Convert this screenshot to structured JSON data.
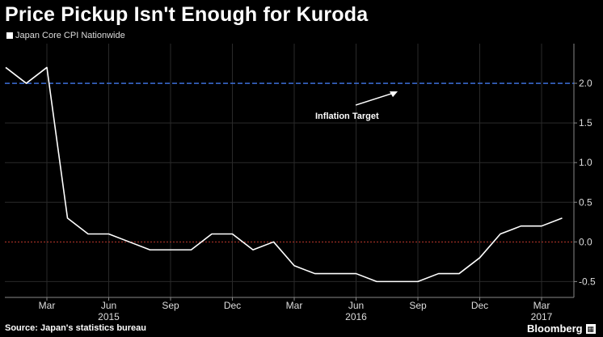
{
  "header": {
    "title": "Price Pickup Isn't Enough for Kuroda"
  },
  "footer": {
    "source": "Source: Japan's statistics bureau",
    "brand": "Bloomberg",
    "brand_icon": "bloomberg-logo-icon"
  },
  "colors": {
    "background": "#000000",
    "line": "#ffffff",
    "target": "#3d6fd9",
    "zero": "#c0392b",
    "grid": "#2a2a2a"
  },
  "chart_data": {
    "type": "line",
    "title": "Price Pickup Isn't Enough for Kuroda",
    "series": [
      {
        "name": "Japan Core CPI Nationwide",
        "x": [
          "2015-01",
          "2015-02",
          "2015-03",
          "2015-04",
          "2015-05",
          "2015-06",
          "2015-07",
          "2015-08",
          "2015-09",
          "2015-10",
          "2015-11",
          "2015-12",
          "2016-01",
          "2016-02",
          "2016-03",
          "2016-04",
          "2016-05",
          "2016-06",
          "2016-07",
          "2016-08",
          "2016-09",
          "2016-10",
          "2016-11",
          "2016-12",
          "2017-01",
          "2017-02",
          "2017-03",
          "2017-04"
        ],
        "values": [
          2.2,
          2.0,
          2.2,
          0.3,
          0.1,
          0.1,
          0.0,
          -0.1,
          -0.1,
          -0.1,
          0.1,
          0.1,
          -0.1,
          0.0,
          -0.3,
          -0.4,
          -0.4,
          -0.4,
          -0.5,
          -0.5,
          -0.5,
          -0.4,
          -0.4,
          -0.2,
          0.1,
          0.2,
          0.2,
          0.3
        ]
      }
    ],
    "reference_lines": [
      {
        "name": "Inflation Target",
        "value": 2.0,
        "style": "dashed"
      },
      {
        "name": "zero",
        "value": 0.0,
        "style": "dotted"
      }
    ],
    "annotation": {
      "text": "Inflation Target"
    },
    "ylim": [
      -0.7,
      2.5
    ],
    "y_ticks": [
      -0.5,
      0.0,
      0.5,
      1.0,
      1.5,
      2.0
    ],
    "y_tick_labels": [
      "-0.5",
      "0.0",
      "0.5",
      "1.0",
      "1.5",
      "2.0"
    ],
    "x_ticks": [
      {
        "month": "2015-03",
        "label": "Mar"
      },
      {
        "month": "2015-06",
        "label": "Jun"
      },
      {
        "month": "2015-09",
        "label": "Sep"
      },
      {
        "month": "2015-12",
        "label": "Dec"
      },
      {
        "month": "2016-03",
        "label": "Mar"
      },
      {
        "month": "2016-06",
        "label": "Jun"
      },
      {
        "month": "2016-09",
        "label": "Sep"
      },
      {
        "month": "2016-12",
        "label": "Dec"
      },
      {
        "month": "2017-03",
        "label": "Mar"
      }
    ],
    "year_labels": [
      {
        "month": "2015-06",
        "label": "2015"
      },
      {
        "month": "2016-06",
        "label": "2016"
      },
      {
        "month": "2017-03",
        "label": "2017"
      }
    ],
    "xlabel": "",
    "ylabel": "",
    "grid": true,
    "legend_position": "top-left"
  }
}
